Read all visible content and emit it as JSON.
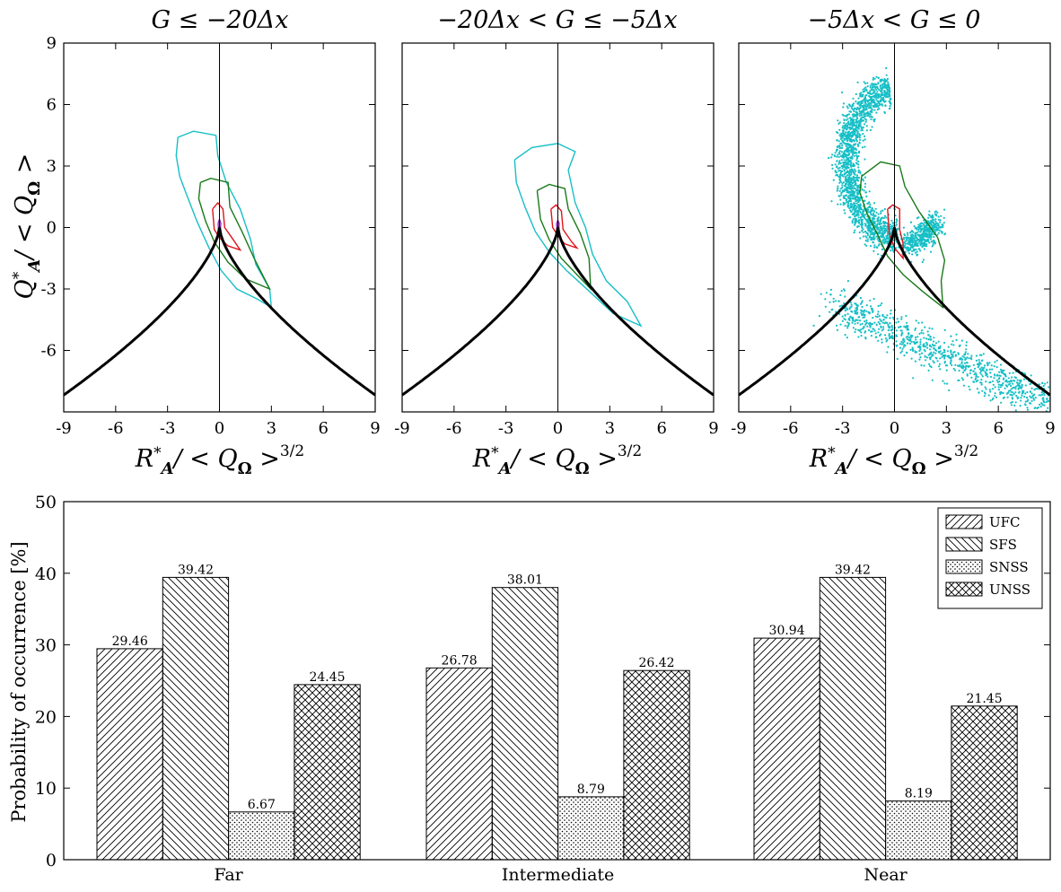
{
  "chart_data": [
    {
      "type": "scatter",
      "title": "G ≤ −20Δx",
      "xlabel": "R*_A/ < Q_Ω >^{3/2}",
      "ylabel": "Q*_A/ < Q_Ω >",
      "xlim": [
        -9,
        9
      ],
      "ylim": [
        -9,
        9
      ],
      "xticks": [
        "-9",
        "-6",
        "-3",
        "0",
        "3",
        "6",
        "9"
      ],
      "yticks": [
        "-6",
        "-3",
        "0",
        "3",
        "6",
        "9"
      ],
      "contours": [
        {
          "color": "#17bfc6",
          "points": [
            [
              -2.4,
              4.4
            ],
            [
              -1.5,
              4.7
            ],
            [
              -0.2,
              4.5
            ],
            [
              -0.1,
              3.5
            ],
            [
              0.4,
              2.2
            ],
            [
              1.2,
              0.9
            ],
            [
              1.8,
              -0.6
            ],
            [
              2.1,
              -1.8
            ],
            [
              2.9,
              -3.0
            ],
            [
              3.0,
              -3.9
            ],
            [
              2.2,
              -3.5
            ],
            [
              1.0,
              -3.0
            ],
            [
              0.1,
              -2.1
            ],
            [
              -0.6,
              -1.0
            ],
            [
              -1.3,
              0.3
            ],
            [
              -1.9,
              1.6
            ],
            [
              -2.3,
              2.5
            ],
            [
              -2.5,
              3.5
            ],
            [
              -2.4,
              4.4
            ]
          ]
        },
        {
          "color": "#1a7a1a",
          "points": [
            [
              -1.1,
              2.2
            ],
            [
              -0.5,
              2.4
            ],
            [
              0.5,
              2.2
            ],
            [
              0.6,
              1.0
            ],
            [
              1.3,
              -0.2
            ],
            [
              2.0,
              -1.5
            ],
            [
              2.9,
              -3.0
            ],
            [
              1.5,
              -2.5
            ],
            [
              0.5,
              -1.7
            ],
            [
              -0.3,
              -0.7
            ],
            [
              -0.8,
              0.3
            ],
            [
              -1.2,
              1.4
            ],
            [
              -1.1,
              2.2
            ]
          ]
        },
        {
          "color": "#e0141c",
          "points": [
            [
              -0.4,
              0.9
            ],
            [
              -0.1,
              1.2
            ],
            [
              0.2,
              0.9
            ],
            [
              0.3,
              0.0
            ],
            [
              0.8,
              -0.6
            ],
            [
              1.2,
              -1.1
            ],
            [
              0.5,
              -0.9
            ],
            [
              0.0,
              -0.5
            ],
            [
              -0.3,
              -0.1
            ],
            [
              -0.4,
              0.9
            ]
          ]
        },
        {
          "color": "#8a2ab0",
          "points": [
            [
              -0.08,
              0.2
            ],
            [
              0.0,
              0.4
            ],
            [
              0.08,
              0.2
            ],
            [
              0.05,
              -0.1
            ],
            [
              -0.05,
              -0.1
            ],
            [
              -0.08,
              0.2
            ]
          ]
        }
      ],
      "scatter": false
    },
    {
      "type": "scatter",
      "title": "−20Δx < G ≤ −5Δx",
      "xlabel": "R*_A/ < Q_Ω >^{3/2}",
      "xlim": [
        -9,
        9
      ],
      "ylim": [
        -9,
        9
      ],
      "xticks": [
        "-9",
        "-6",
        "-3",
        "0",
        "3",
        "6",
        "9"
      ],
      "contours": [
        {
          "color": "#17bfc6",
          "points": [
            [
              -2.5,
              3.3
            ],
            [
              -1.5,
              3.9
            ],
            [
              0.0,
              4.1
            ],
            [
              1.0,
              3.7
            ],
            [
              0.6,
              2.8
            ],
            [
              1.0,
              1.2
            ],
            [
              1.6,
              0.0
            ],
            [
              2.0,
              -1.3
            ],
            [
              2.8,
              -2.6
            ],
            [
              4.0,
              -3.6
            ],
            [
              4.8,
              -4.8
            ],
            [
              3.2,
              -4.2
            ],
            [
              1.8,
              -3.1
            ],
            [
              0.5,
              -2.1
            ],
            [
              -0.5,
              -1.2
            ],
            [
              -1.3,
              -0.2
            ],
            [
              -1.9,
              1.0
            ],
            [
              -2.4,
              2.2
            ],
            [
              -2.5,
              3.3
            ]
          ]
        },
        {
          "color": "#1a7a1a",
          "points": [
            [
              -1.2,
              1.8
            ],
            [
              -0.5,
              2.1
            ],
            [
              0.4,
              1.9
            ],
            [
              0.6,
              0.9
            ],
            [
              1.3,
              -0.3
            ],
            [
              1.8,
              -1.5
            ],
            [
              1.9,
              -3.0
            ],
            [
              1.1,
              -2.3
            ],
            [
              0.2,
              -1.5
            ],
            [
              -0.5,
              -0.6
            ],
            [
              -1.0,
              0.4
            ],
            [
              -1.2,
              1.8
            ]
          ]
        },
        {
          "color": "#e0141c",
          "points": [
            [
              -0.4,
              0.9
            ],
            [
              -0.1,
              1.1
            ],
            [
              0.2,
              0.8
            ],
            [
              0.3,
              -0.1
            ],
            [
              0.8,
              -0.7
            ],
            [
              1.1,
              -1.0
            ],
            [
              0.4,
              -0.8
            ],
            [
              0.0,
              -0.4
            ],
            [
              -0.3,
              0.0
            ],
            [
              -0.4,
              0.9
            ]
          ]
        },
        {
          "color": "#8a2ab0",
          "points": [
            [
              -0.08,
              0.2
            ],
            [
              0.0,
              0.35
            ],
            [
              0.08,
              0.2
            ],
            [
              0.05,
              -0.1
            ],
            [
              -0.05,
              -0.1
            ],
            [
              -0.08,
              0.2
            ]
          ]
        }
      ],
      "scatter": false
    },
    {
      "type": "scatter",
      "title": "−5Δx < G ≤ 0",
      "xlabel": "R*_A/ < Q_Ω >^{3/2}",
      "xlim": [
        -9,
        9
      ],
      "ylim": [
        -9,
        9
      ],
      "xticks": [
        "-9",
        "-6",
        "-3",
        "0",
        "3",
        "6",
        "9"
      ],
      "contours": [
        {
          "color": "#1a7a1a",
          "points": [
            [
              -1.9,
              2.5
            ],
            [
              -0.8,
              3.2
            ],
            [
              0.3,
              3.0
            ],
            [
              0.6,
              2.0
            ],
            [
              1.4,
              0.8
            ],
            [
              2.5,
              -0.5
            ],
            [
              2.9,
              -1.6
            ],
            [
              2.7,
              -2.6
            ],
            [
              2.8,
              -3.9
            ],
            [
              1.6,
              -3.1
            ],
            [
              0.5,
              -2.3
            ],
            [
              -0.4,
              -1.4
            ],
            [
              -1.0,
              -0.3
            ],
            [
              -1.6,
              0.7
            ],
            [
              -2.0,
              1.7
            ],
            [
              -1.9,
              2.5
            ]
          ]
        },
        {
          "color": "#e0141c",
          "points": [
            [
              -0.4,
              0.9
            ],
            [
              -0.1,
              1.1
            ],
            [
              0.3,
              0.9
            ],
            [
              0.3,
              -0.1
            ],
            [
              0.5,
              -0.8
            ],
            [
              0.5,
              -1.5
            ],
            [
              0.0,
              -1.0
            ],
            [
              -0.3,
              -0.3
            ],
            [
              -0.4,
              0.9
            ]
          ]
        }
      ],
      "scatter": true,
      "scatter_color": "#17bfc6",
      "scatter_region": "horseshoe"
    },
    {
      "type": "bar",
      "ylabel": "Probability of occurrence [%]",
      "categories": [
        "Far",
        "Intermediate",
        "Near"
      ],
      "ylim": [
        0,
        50
      ],
      "yticks": [
        "0",
        "10",
        "20",
        "30",
        "40",
        "50"
      ],
      "series": [
        {
          "name": "UFC",
          "values": [
            29.46,
            26.78,
            30.94
          ],
          "labels": [
            "29.46",
            "26.78",
            "30.94"
          ],
          "hatch": "forward"
        },
        {
          "name": "SFS",
          "values": [
            39.42,
            38.01,
            39.42
          ],
          "labels": [
            "39.42",
            "38.01",
            "39.42"
          ],
          "hatch": "backward"
        },
        {
          "name": "SNSS",
          "values": [
            6.67,
            8.79,
            8.19
          ],
          "labels": [
            "6.67",
            "8.79",
            "8.19"
          ],
          "hatch": "dots"
        },
        {
          "name": "UNSS",
          "values": [
            24.45,
            26.42,
            21.45
          ],
          "labels": [
            "24.45",
            "26.42",
            "21.45"
          ],
          "hatch": "cross"
        }
      ],
      "legend": "top-right",
      "grid": false
    }
  ]
}
